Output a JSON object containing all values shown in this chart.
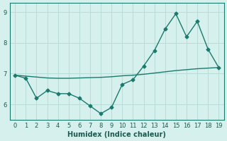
{
  "x": [
    0,
    1,
    2,
    3,
    4,
    5,
    6,
    7,
    8,
    9,
    10,
    11,
    12,
    13,
    14,
    15,
    16,
    17,
    18,
    19
  ],
  "y_main": [
    6.95,
    6.85,
    6.2,
    6.45,
    6.35,
    6.35,
    6.2,
    5.95,
    5.7,
    5.9,
    6.65,
    6.8,
    7.25,
    7.75,
    8.45,
    8.95,
    8.2,
    8.7,
    7.8,
    7.2
  ],
  "y_trend": [
    6.95,
    6.92,
    6.89,
    6.86,
    6.85,
    6.85,
    6.86,
    6.87,
    6.88,
    6.9,
    6.93,
    6.95,
    6.98,
    7.02,
    7.06,
    7.1,
    7.13,
    7.16,
    7.18,
    7.2
  ],
  "line_color": "#1a7a6e",
  "bg_color": "#d6f0ee",
  "grid_color": "#b8dcd8",
  "xlabel": "Humidex (Indice chaleur)",
  "ylim": [
    5.5,
    9.3
  ],
  "xlim": [
    -0.5,
    19.5
  ],
  "yticks": [
    6,
    7,
    8,
    9
  ],
  "xticks": [
    0,
    1,
    2,
    3,
    4,
    5,
    6,
    7,
    8,
    9,
    10,
    11,
    12,
    13,
    14,
    15,
    16,
    17,
    18,
    19
  ],
  "marker": "D",
  "markersize": 2.5,
  "linewidth": 1.0,
  "label_fontsize": 7,
  "tick_fontsize": 6
}
